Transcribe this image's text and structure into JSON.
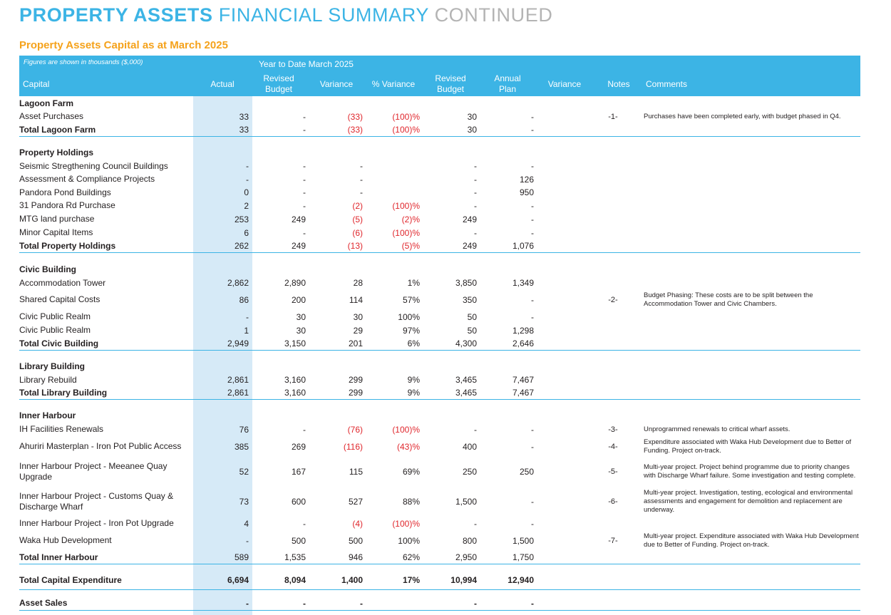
{
  "page": {
    "title_part1": "PROPERTY ASSETS",
    "title_part2": "FINANCIAL SUMMARY",
    "title_part3": "CONTINUED",
    "subtitle": "Property Assets Capital as at March 2025"
  },
  "header": {
    "figures_note": "Figures are shown in thousands ($,000)",
    "ytd_label": "Year to Date  March 2025",
    "columns": {
      "capital": "Capital",
      "actual": "Actual",
      "revised_budget": "Revised Budget",
      "variance": "Variance",
      "pct_variance": "% Variance",
      "revised_budget_2": "Revised Budget",
      "annual_plan": "Annual Plan",
      "variance_2": "Variance",
      "notes": "Notes",
      "comments": "Comments"
    }
  },
  "colors": {
    "accent": "#3cb4e5",
    "orange": "#f5a21b",
    "negative": "#e0262c",
    "actual_band": "#d6eaf7"
  },
  "rows": [
    {
      "type": "section",
      "label": "Lagoon Farm"
    },
    {
      "type": "item",
      "label": "Asset Purchases",
      "actual": "33",
      "revised_budget": "-",
      "variance": "(33)",
      "pct_variance": "(100)%",
      "revised_budget_2": "30",
      "annual_plan": "-",
      "notes": "-1-",
      "comment": "Purchases have been completed early, with budget phased in Q4."
    },
    {
      "type": "total",
      "label": "Total Lagoon Farm",
      "actual": "33",
      "revised_budget": "-",
      "variance": "(33)",
      "pct_variance": "(100)%",
      "revised_budget_2": "30",
      "annual_plan": "-"
    },
    {
      "type": "section",
      "label": "Property Holdings"
    },
    {
      "type": "item",
      "label": "Seismic Stregthening Council Buildings",
      "actual": "-",
      "revised_budget": "-",
      "variance": "-",
      "pct_variance": "",
      "revised_budget_2": "-",
      "annual_plan": "-"
    },
    {
      "type": "item",
      "label": "Assessment & Compliance Projects",
      "actual": "-",
      "revised_budget": "-",
      "variance": "-",
      "pct_variance": "",
      "revised_budget_2": "-",
      "annual_plan": "126"
    },
    {
      "type": "item",
      "label": "Pandora Pond Buildings",
      "actual": "0",
      "revised_budget": "-",
      "variance": "-",
      "pct_variance": "",
      "revised_budget_2": "-",
      "annual_plan": "950"
    },
    {
      "type": "item",
      "label": "31 Pandora Rd Purchase",
      "actual": "2",
      "revised_budget": "-",
      "variance": "(2)",
      "pct_variance": "(100)%",
      "revised_budget_2": "-",
      "annual_plan": "-"
    },
    {
      "type": "item",
      "label": "MTG land purchase",
      "actual": "253",
      "revised_budget": "249",
      "variance": "(5)",
      "pct_variance": "(2)%",
      "revised_budget_2": "249",
      "annual_plan": "-"
    },
    {
      "type": "item",
      "label": "Minor Capital Items",
      "actual": "6",
      "revised_budget": "-",
      "variance": "(6)",
      "pct_variance": "(100)%",
      "revised_budget_2": "-",
      "annual_plan": "-"
    },
    {
      "type": "total",
      "label": "Total Property Holdings",
      "actual": "262",
      "revised_budget": "249",
      "variance": "(13)",
      "pct_variance": "(5)%",
      "revised_budget_2": "249",
      "annual_plan": "1,076"
    },
    {
      "type": "section",
      "label": "Civic Building"
    },
    {
      "type": "item",
      "label": "Accommodation Tower",
      "actual": "2,862",
      "revised_budget": "2,890",
      "variance": "28",
      "pct_variance": "1%",
      "revised_budget_2": "3,850",
      "annual_plan": "1,349"
    },
    {
      "type": "item",
      "label": "Shared Capital Costs",
      "actual": "86",
      "revised_budget": "200",
      "variance": "114",
      "pct_variance": "57%",
      "revised_budget_2": "350",
      "annual_plan": "-",
      "notes": "-2-",
      "comment": "Budget Phasing: These costs are to be split between the Accommodation Tower and Civic Chambers."
    },
    {
      "type": "item",
      "label": "Civic Public Realm",
      "actual": "-",
      "revised_budget": "30",
      "variance": "30",
      "pct_variance": "100%",
      "revised_budget_2": "50",
      "annual_plan": "-"
    },
    {
      "type": "item",
      "label": "Civic Public Realm",
      "actual": "1",
      "revised_budget": "30",
      "variance": "29",
      "pct_variance": "97%",
      "revised_budget_2": "50",
      "annual_plan": "1,298"
    },
    {
      "type": "total",
      "label": "Total Civic Building",
      "actual": "2,949",
      "revised_budget": "3,150",
      "variance": "201",
      "pct_variance": "6%",
      "revised_budget_2": "4,300",
      "annual_plan": "2,646"
    },
    {
      "type": "section",
      "label": "Library Building"
    },
    {
      "type": "item",
      "label": "Library Rebuild",
      "actual": "2,861",
      "revised_budget": "3,160",
      "variance": "299",
      "pct_variance": "9%",
      "revised_budget_2": "3,465",
      "annual_plan": "7,467"
    },
    {
      "type": "total",
      "label": "Total Library Building",
      "actual": "2,861",
      "revised_budget": "3,160",
      "variance": "299",
      "pct_variance": "9%",
      "revised_budget_2": "3,465",
      "annual_plan": "7,467"
    },
    {
      "type": "section",
      "label": "Inner Harbour"
    },
    {
      "type": "item",
      "label": "IH Facilities Renewals",
      "actual": "76",
      "revised_budget": "-",
      "variance": "(76)",
      "pct_variance": "(100)%",
      "revised_budget_2": "-",
      "annual_plan": "-",
      "notes": "-3-",
      "comment": "Unprogrammed renewals to critical wharf assets."
    },
    {
      "type": "item",
      "label": "Ahuriri Masterplan - Iron Pot Public Access",
      "actual": "385",
      "revised_budget": "269",
      "variance": "(116)",
      "pct_variance": "(43)%",
      "revised_budget_2": "400",
      "annual_plan": "-",
      "notes": "-4-",
      "comment": "Expenditure associated with Waka Hub Development due to Better of Funding. Project on-track."
    },
    {
      "type": "item",
      "label": "Inner Harbour Project - Meeanee Quay Upgrade",
      "actual": "52",
      "revised_budget": "167",
      "variance": "115",
      "pct_variance": "69%",
      "revised_budget_2": "250",
      "annual_plan": "250",
      "notes": "-5-",
      "comment": "Multi-year project. Project behind programme due to priority changes with Discharge Wharf failure. Some investigation and testing complete."
    },
    {
      "type": "item",
      "label": "Inner Harbour Project - Customs Quay & Discharge Wharf",
      "actual": "73",
      "revised_budget": "600",
      "variance": "527",
      "pct_variance": "88%",
      "revised_budget_2": "1,500",
      "annual_plan": "-",
      "notes": "-6-",
      "comment": "Multi-year project. Investigation, testing, ecological and environmental assessments and engagement for demolition and replacement are underway."
    },
    {
      "type": "item",
      "label": "Inner Harbour Project - Iron Pot Upgrade",
      "actual": "4",
      "revised_budget": "-",
      "variance": "(4)",
      "pct_variance": "(100)%",
      "revised_budget_2": "-",
      "annual_plan": "-"
    },
    {
      "type": "item",
      "label": "Waka Hub Development",
      "actual": "-",
      "revised_budget": "500",
      "variance": "500",
      "pct_variance": "100%",
      "revised_budget_2": "800",
      "annual_plan": "1,500",
      "notes": "-7-",
      "comment": "Multi-year project. Expenditure associated with Waka Hub Development due to Better of Funding. Project on-track."
    },
    {
      "type": "total",
      "label": "Total Inner Harbour",
      "actual": "589",
      "revised_budget": "1,535",
      "variance": "946",
      "pct_variance": "62%",
      "revised_budget_2": "2,950",
      "annual_plan": "1,750"
    },
    {
      "type": "grand",
      "label": "Total Capital Expenditure",
      "actual": "6,694",
      "revised_budget": "8,094",
      "variance": "1,400",
      "pct_variance": "17%",
      "revised_budget_2": "10,994",
      "annual_plan": "12,940"
    },
    {
      "type": "grand",
      "label": "Asset Sales",
      "actual": "-",
      "revised_budget": "-",
      "variance": "-",
      "pct_variance": "",
      "revised_budget_2": "-",
      "annual_plan": "-"
    }
  ]
}
